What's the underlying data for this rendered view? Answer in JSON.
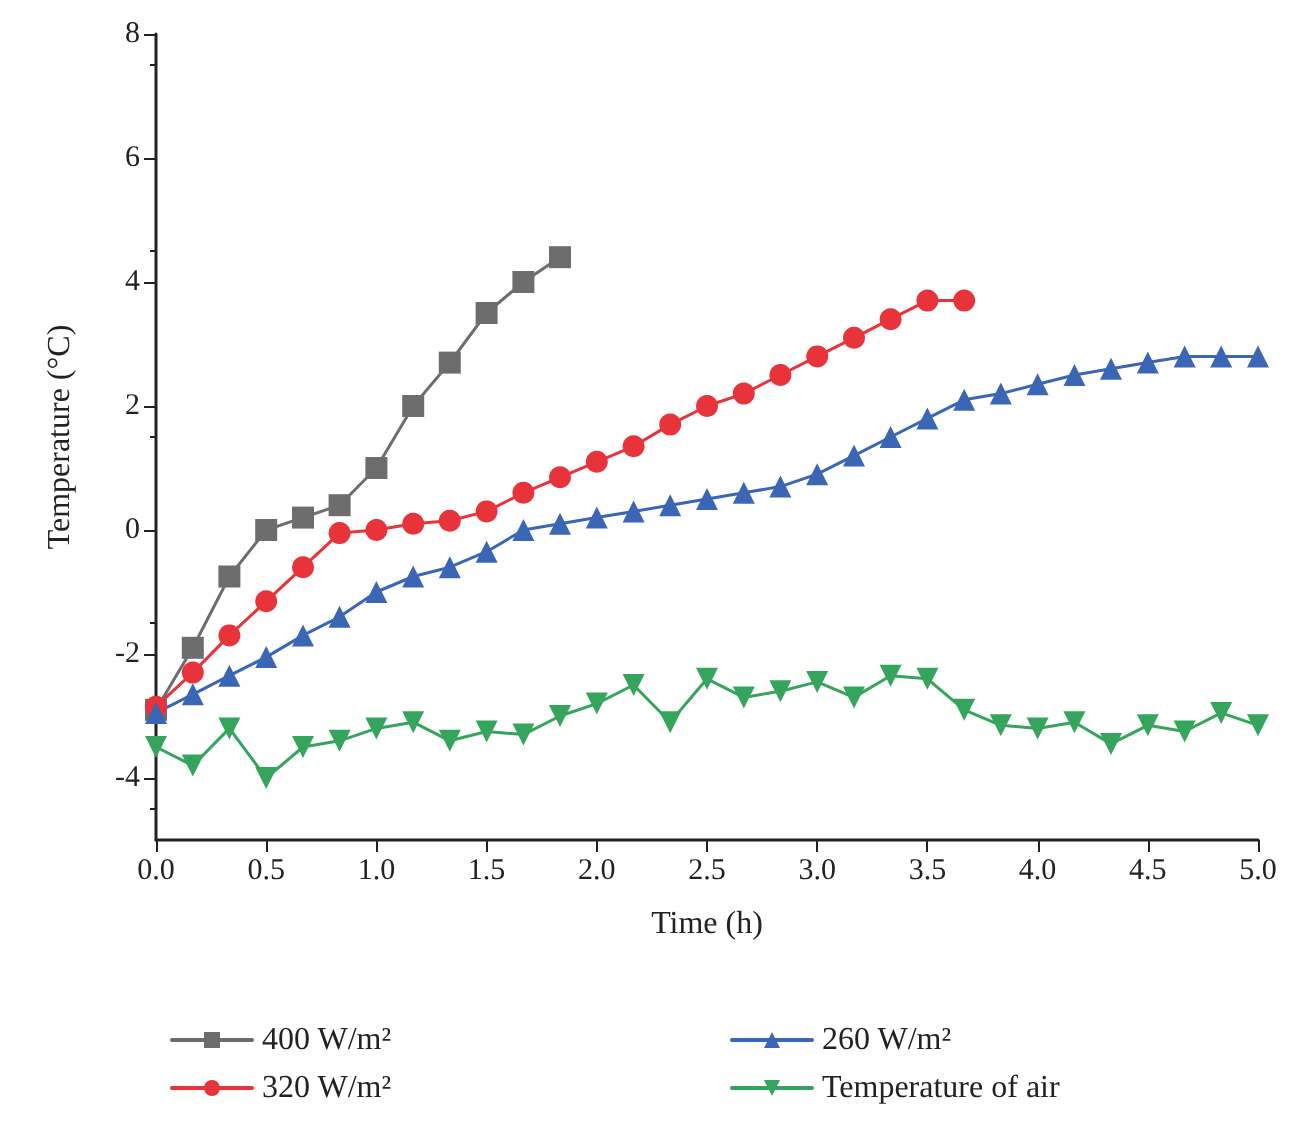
{
  "chart_data": {
    "type": "line",
    "xlabel": "Time (h)",
    "ylabel": "Temperature (°C)",
    "xlim": [
      0,
      5
    ],
    "xticks": [
      {
        "value": 0,
        "label": "0.0"
      },
      {
        "value": 0.5,
        "label": "0.5"
      },
      {
        "value": 1,
        "label": "1.0"
      },
      {
        "value": 1.5,
        "label": "1.5"
      },
      {
        "value": 2,
        "label": "2.0"
      },
      {
        "value": 2.5,
        "label": "2.5"
      },
      {
        "value": 3,
        "label": "3.0"
      },
      {
        "value": 3.5,
        "label": "3.5"
      },
      {
        "value": 4,
        "label": "4.0"
      },
      {
        "value": 4.5,
        "label": "4.5"
      },
      {
        "value": 5,
        "label": "5.0"
      }
    ],
    "ylim": [
      -5,
      8
    ],
    "yticks": [
      -4,
      -2,
      0,
      2,
      4,
      6,
      8
    ],
    "grid": false,
    "legend": "bottom",
    "line_style": "solid",
    "series": [
      {
        "name": "400 W/m²",
        "color": "#6d6d6d",
        "marker": "square",
        "x": [
          0,
          0.167,
          0.333,
          0.5,
          0.667,
          0.833,
          1,
          1.167,
          1.333,
          1.5,
          1.667,
          1.833
        ],
        "values": [
          -2.9,
          -1.9,
          -0.75,
          0,
          0.2,
          0.4,
          1,
          2,
          2.7,
          3.5,
          4,
          4.4
        ]
      },
      {
        "name": "320 W/m²",
        "color": "#e8333a",
        "marker": "circle",
        "x": [
          0,
          0.167,
          0.333,
          0.5,
          0.667,
          0.833,
          1,
          1.167,
          1.333,
          1.5,
          1.667,
          1.833,
          2,
          2.167,
          2.333,
          2.5,
          2.667,
          2.833,
          3,
          3.167,
          3.333,
          3.5,
          3.667
        ],
        "values": [
          -2.85,
          -2.3,
          -1.7,
          -1.15,
          -0.6,
          -0.05,
          0,
          0.1,
          0.15,
          0.3,
          0.6,
          0.85,
          1.1,
          1.35,
          1.7,
          2,
          2.2,
          2.5,
          2.8,
          3.1,
          3.4,
          3.7,
          3.7
        ]
      },
      {
        "name": "260 W/m²",
        "color": "#3a66b5",
        "marker": "triangle",
        "x": [
          0,
          0.167,
          0.333,
          0.5,
          0.667,
          0.833,
          1,
          1.167,
          1.333,
          1.5,
          1.667,
          1.833,
          2,
          2.167,
          2.333,
          2.5,
          2.667,
          2.833,
          3,
          3.167,
          3.333,
          3.5,
          3.667,
          3.833,
          4,
          4.167,
          4.333,
          4.5,
          4.667,
          4.833,
          5
        ],
        "values": [
          -2.95,
          -2.65,
          -2.35,
          -2.05,
          -1.7,
          -1.4,
          -1,
          -0.75,
          -0.6,
          -0.35,
          0,
          0.1,
          0.2,
          0.3,
          0.4,
          0.5,
          0.6,
          0.7,
          0.9,
          1.2,
          1.5,
          1.8,
          2.1,
          2.2,
          2.35,
          2.5,
          2.6,
          2.7,
          2.8,
          2.8,
          2.8
        ]
      },
      {
        "name": "Temperature of air",
        "color": "#35a45c",
        "marker": "triangle_down",
        "x": [
          0,
          0.167,
          0.333,
          0.5,
          0.667,
          0.833,
          1,
          1.167,
          1.333,
          1.5,
          1.667,
          1.833,
          2,
          2.167,
          2.333,
          2.5,
          2.667,
          2.833,
          3,
          3.167,
          3.333,
          3.5,
          3.667,
          3.833,
          4,
          4.167,
          4.333,
          4.5,
          4.667,
          4.833,
          5
        ],
        "values": [
          -3.5,
          -3.8,
          -3.2,
          -4,
          -3.5,
          -3.4,
          -3.2,
          -3.1,
          -3.4,
          -3.25,
          -3.3,
          -3,
          -2.8,
          -2.5,
          -3.1,
          -2.4,
          -2.7,
          -2.6,
          -2.45,
          -2.7,
          -2.35,
          -2.4,
          -2.9,
          -3.15,
          -3.2,
          -3.1,
          -3.45,
          -3.15,
          -3.25,
          -2.95,
          -3.15
        ]
      }
    ]
  }
}
